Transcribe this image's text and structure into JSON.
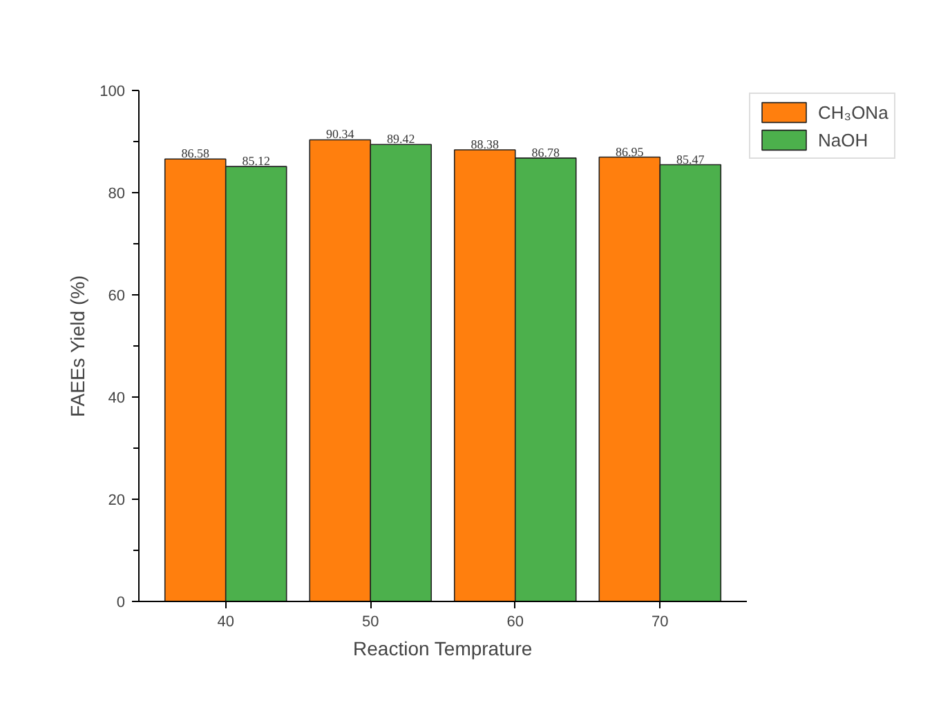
{
  "chart_data": {
    "type": "bar",
    "xlabel": "Reaction Temprature",
    "ylabel": "FAEEs Yield (%)",
    "categories": [
      "40",
      "50",
      "60",
      "70"
    ],
    "series": [
      {
        "name": "CH₃ONa",
        "color": "#ff7f0e",
        "values": [
          86.58,
          90.34,
          88.38,
          86.95
        ]
      },
      {
        "name": "NaOH",
        "color": "#4cb04c",
        "values": [
          85.12,
          89.42,
          86.78,
          85.47
        ]
      }
    ],
    "ylim": [
      0,
      100
    ],
    "yticks": [
      0,
      20,
      40,
      60,
      80,
      100
    ],
    "data_labels": true,
    "grid": false,
    "legend": "top right"
  }
}
